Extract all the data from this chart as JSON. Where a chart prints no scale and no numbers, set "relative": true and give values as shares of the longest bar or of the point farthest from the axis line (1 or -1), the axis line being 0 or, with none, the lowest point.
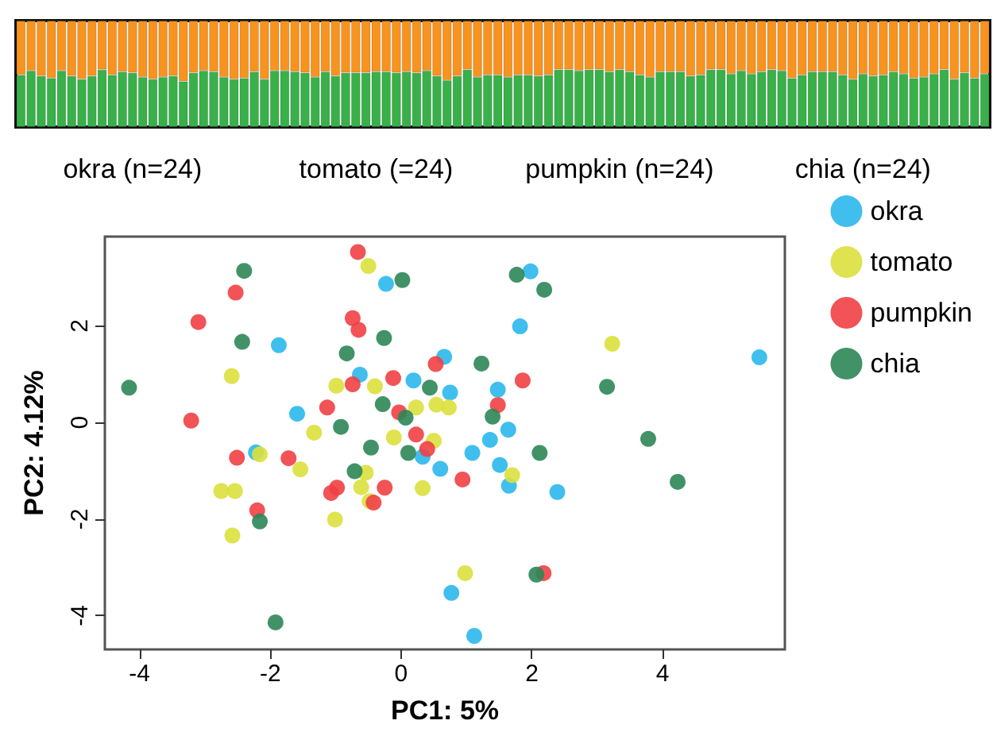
{
  "chart_data": [
    {
      "type": "bar",
      "stacked": true,
      "relative": true,
      "categories": [
        null,
        null,
        null,
        null,
        null,
        null,
        null,
        null,
        null,
        null,
        null,
        "okra (n=24)",
        null,
        null,
        null,
        null,
        null,
        null,
        null,
        null,
        null,
        null,
        null,
        null,
        null,
        null,
        null,
        null,
        null,
        null,
        null,
        null,
        null,
        null,
        null,
        "tomato (=24)",
        null,
        null,
        null,
        null,
        null,
        null,
        null,
        null,
        null,
        null,
        null,
        null,
        null,
        null,
        null,
        null,
        null,
        null,
        null,
        null,
        null,
        null,
        null,
        "pumpkin (n=24)",
        null,
        null,
        null,
        null,
        null,
        null,
        null,
        null,
        null,
        null,
        null,
        null,
        null,
        null,
        null,
        null,
        null,
        null,
        null,
        null,
        null,
        null,
        null,
        "chia (n=24)",
        null,
        null,
        null,
        null,
        null,
        null,
        null,
        null,
        null,
        null,
        null,
        null
      ],
      "series": [
        {
          "color": "#39b04a",
          "values": [
            0.49,
            0.53,
            0.48,
            0.46,
            0.53,
            0.48,
            0.45,
            0.48,
            0.54,
            0.49,
            0.52,
            0.51,
            0.47,
            0.45,
            0.47,
            0.48,
            0.43,
            0.51,
            0.53,
            0.52,
            0.47,
            0.45,
            0.46,
            0.52,
            0.45,
            0.53,
            0.53,
            0.52,
            0.51,
            0.47,
            0.52,
            0.48,
            0.51,
            0.51,
            0.51,
            0.52,
            0.52,
            0.51,
            0.52,
            0.51,
            0.53,
            0.48,
            0.44,
            0.48,
            0.54,
            0.47,
            0.49,
            0.49,
            0.47,
            0.49,
            0.49,
            0.48,
            0.49,
            0.54,
            0.54,
            0.53,
            0.54,
            0.54,
            0.52,
            0.54,
            0.52,
            0.49,
            0.47,
            0.52,
            0.52,
            0.52,
            0.48,
            0.49,
            0.54,
            0.54,
            0.5,
            0.53,
            0.5,
            0.52,
            0.54,
            0.53,
            0.46,
            0.49,
            0.52,
            0.52,
            0.52,
            0.49,
            0.45,
            0.5,
            0.48,
            0.49,
            0.52,
            0.5,
            0.46,
            0.47,
            0.5,
            0.54,
            0.45,
            0.51,
            0.46,
            0.5
          ]
        },
        {
          "color": "#f7931e",
          "values": [
            0.51,
            0.47,
            0.52,
            0.54,
            0.47,
            0.52,
            0.55,
            0.52,
            0.46,
            0.51,
            0.48,
            0.49,
            0.53,
            0.55,
            0.53,
            0.52,
            0.57,
            0.49,
            0.47,
            0.48,
            0.53,
            0.55,
            0.54,
            0.48,
            0.55,
            0.47,
            0.47,
            0.48,
            0.49,
            0.53,
            0.48,
            0.52,
            0.49,
            0.49,
            0.49,
            0.48,
            0.48,
            0.49,
            0.48,
            0.49,
            0.47,
            0.52,
            0.56,
            0.52,
            0.46,
            0.53,
            0.51,
            0.51,
            0.53,
            0.51,
            0.51,
            0.52,
            0.51,
            0.46,
            0.46,
            0.47,
            0.46,
            0.46,
            0.48,
            0.46,
            0.48,
            0.51,
            0.53,
            0.48,
            0.48,
            0.48,
            0.52,
            0.51,
            0.46,
            0.46,
            0.5,
            0.47,
            0.5,
            0.48,
            0.46,
            0.47,
            0.54,
            0.51,
            0.48,
            0.48,
            0.48,
            0.51,
            0.55,
            0.5,
            0.52,
            0.51,
            0.48,
            0.5,
            0.54,
            0.53,
            0.5,
            0.46,
            0.55,
            0.49,
            0.54,
            0.5
          ]
        }
      ]
    },
    {
      "type": "scatter",
      "xlabel": "PC1: 5%",
      "ylabel": "PC2: 4.12%",
      "xlim": [
        -4.53,
        5.87
      ],
      "ylim": [
        -4.7,
        3.85
      ],
      "xticks": [
        -4,
        -2,
        0,
        2,
        4
      ],
      "yticks": [
        -4,
        -2,
        0,
        2
      ],
      "legend": "right",
      "marker": "circle",
      "series": [
        {
          "name": "okra",
          "color": "#2bb8ec",
          "x": [
            -0.23,
            -1.87,
            0.66,
            -0.63,
            0.19,
            0.75,
            -1.59,
            1.98,
            1.82,
            5.48,
            1.48,
            1.58,
            1.64,
            1.36,
            1.09,
            1.51,
            1.65,
            2.39,
            0.6,
            0.77,
            1.12,
            -2.22,
            0.33
          ],
          "values": [
            2.87,
            1.6,
            1.36,
            0.99,
            0.87,
            0.62,
            0.18,
            3.13,
            1.99,
            1.35,
            0.68,
            null,
            -0.15,
            -0.36,
            -0.63,
            -0.88,
            -1.31,
            -1.44,
            -0.96,
            -3.53,
            -4.42,
            -0.62,
            -0.71
          ]
        },
        {
          "name": "tomato",
          "color": "#dbe03c",
          "x": [
            -0.5,
            -2.59,
            -0.99,
            -0.4,
            0.23,
            0.54,
            0.73,
            -1.33,
            -0.11,
            0.5,
            3.23,
            1.7,
            0.98,
            -2.16,
            -1.54,
            -0.54,
            -2.75,
            -2.54,
            -0.61,
            0.33,
            -0.48,
            -1.01,
            -2.58
          ],
          "values": [
            3.24,
            0.96,
            0.76,
            0.75,
            0.31,
            0.37,
            0.31,
            -0.21,
            -0.31,
            -0.38,
            1.63,
            -1.09,
            -3.12,
            -0.66,
            -0.97,
            -1.04,
            -1.42,
            -1.42,
            -1.34,
            -1.36,
            -1.63,
            -2.01,
            -2.34
          ]
        },
        {
          "name": "pumpkin",
          "color": "#ef4044",
          "x": [
            -0.66,
            -2.53,
            -3.1,
            -0.74,
            -0.65,
            0.53,
            -0.74,
            -0.12,
            -3.21,
            -1.13,
            -0.03,
            0.23,
            1.86,
            1.48,
            0.94,
            2.18,
            -2.51,
            -1.72,
            0.4,
            -1.07,
            -0.98,
            -0.25,
            -0.42,
            -2.2
          ],
          "values": [
            3.53,
            2.69,
            2.08,
            2.16,
            1.92,
            1.21,
            0.79,
            0.92,
            0.04,
            0.31,
            0.21,
            -0.25,
            0.87,
            0.36,
            -1.18,
            -3.12,
            -0.73,
            -0.74,
            -0.55,
            -1.46,
            -1.35,
            -1.35,
            -1.66,
            -1.82
          ]
        },
        {
          "name": "chia",
          "color": "#2e8658",
          "x": [
            0.02,
            -2.4,
            -2.43,
            -0.26,
            -0.83,
            -4.16,
            0.44,
            -0.28,
            0.07,
            -0.92,
            -0.46,
            1.77,
            2.19,
            1.23,
            3.15,
            1.4,
            3.78,
            2.12,
            4.23,
            2.07,
            -0.71,
            0.11,
            -2.16,
            -1.92
          ],
          "values": [
            2.95,
            3.14,
            1.67,
            1.75,
            1.43,
            0.72,
            0.72,
            0.38,
            0.1,
            -0.09,
            -0.52,
            3.06,
            2.75,
            1.22,
            0.74,
            0.12,
            -0.34,
            -0.63,
            -1.23,
            -3.15,
            -1.01,
            -0.63,
            -2.05,
            -4.14
          ]
        }
      ]
    }
  ]
}
